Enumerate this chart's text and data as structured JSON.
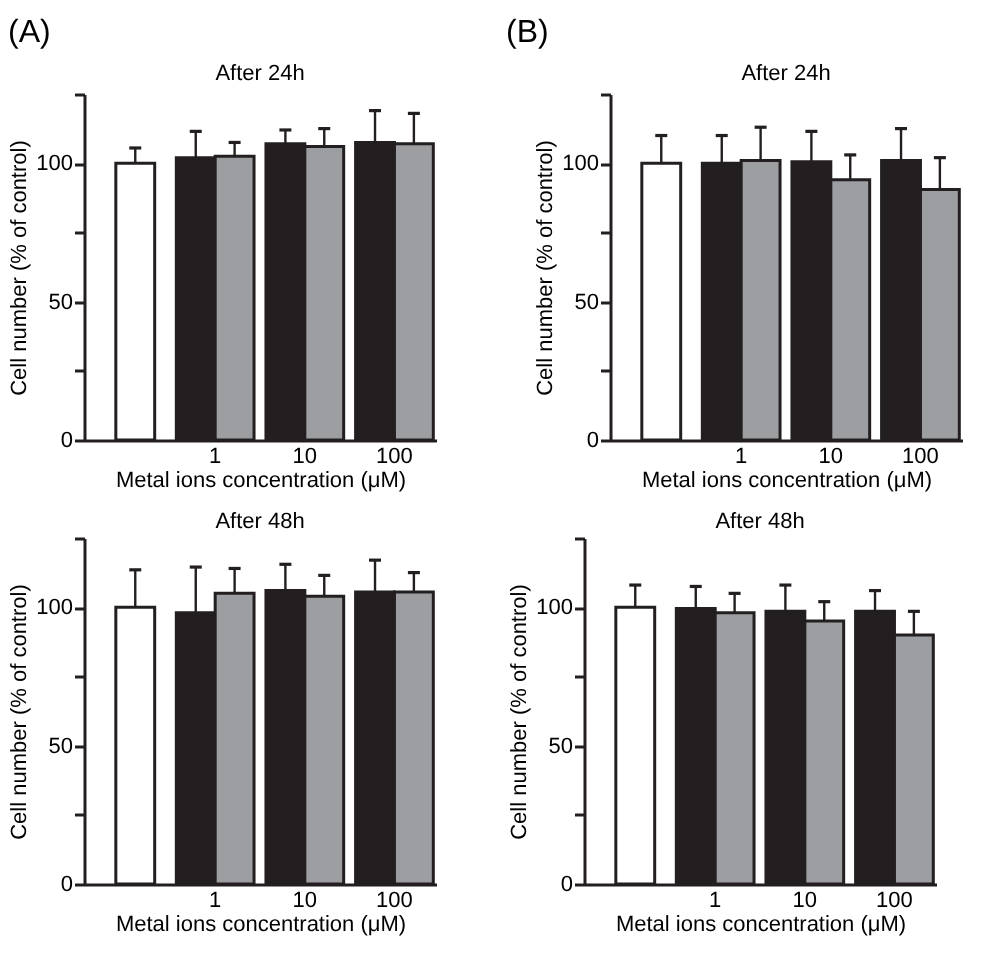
{
  "chart_data": [
    {
      "type": "bar",
      "title": "After 24h",
      "annotations": [
        "(A)"
      ],
      "xlabel": "Metal ions concentration (μM)",
      "ylabel": "Cell number (% of control)",
      "categories": [
        null,
        "1",
        "10",
        "100"
      ],
      "ylim": [
        0,
        125
      ],
      "yticks": [
        0,
        {
          "value": 25,
          "label": null
        },
        50,
        {
          "value": 75,
          "label": null
        },
        100,
        {
          "value": 125,
          "label": null
        }
      ],
      "series": [
        {
          "color": "#ffffff",
          "values": [
            100,
            null,
            null,
            null
          ],
          "errors": [
            [
              100,
              105.5
            ],
            null,
            null,
            null
          ]
        },
        {
          "color": "#231f20",
          "values": [
            null,
            102,
            107,
            107.5
          ],
          "errors": [
            null,
            [
              102,
              111.5
            ],
            [
              107,
              112
            ],
            [
              107.5,
              119
            ]
          ]
        },
        {
          "color": "#9d9ea2",
          "values": [
            null,
            102.5,
            106,
            107
          ],
          "errors": [
            null,
            [
              102.5,
              107.5
            ],
            [
              106,
              112.5
            ],
            [
              107,
              118
            ]
          ]
        }
      ]
    },
    {
      "type": "bar",
      "title": "After 24h",
      "annotations": [
        "(B)"
      ],
      "xlabel": "Metal ions concentration (μM)",
      "ylabel": "Cell number (% of control)",
      "categories": [
        null,
        "1",
        "10",
        "100"
      ],
      "ylim": [
        0,
        125
      ],
      "yticks": [
        0,
        {
          "value": 25,
          "label": null
        },
        50,
        {
          "value": 75,
          "label": null
        },
        100,
        {
          "value": 125,
          "label": null
        }
      ],
      "series": [
        {
          "color": "#ffffff",
          "values": [
            100,
            null,
            null,
            null
          ],
          "errors": [
            [
              100,
              110
            ],
            null,
            null,
            null
          ]
        },
        {
          "color": "#231f20",
          "values": [
            null,
            100,
            100.5,
            101
          ],
          "errors": [
            null,
            [
              100,
              110
            ],
            [
              100.5,
              111.5
            ],
            [
              101,
              112.5
            ]
          ]
        },
        {
          "color": "#9d9ea2",
          "values": [
            null,
            101,
            94,
            90.5
          ],
          "errors": [
            null,
            [
              101,
              113
            ],
            [
              94,
              103
            ],
            [
              90.5,
              102
            ]
          ]
        }
      ]
    },
    {
      "type": "bar",
      "title": "After 48h",
      "xlabel": "Metal ions concentration (μM)",
      "ylabel": "Cell number (% of control)",
      "categories": [
        null,
        "1",
        "10",
        "100"
      ],
      "ylim": [
        0,
        125
      ],
      "yticks": [
        0,
        {
          "value": 25,
          "label": null
        },
        50,
        {
          "value": 75,
          "label": null
        },
        100,
        {
          "value": 125,
          "label": null
        }
      ],
      "series": [
        {
          "color": "#ffffff",
          "values": [
            100,
            null,
            null,
            null
          ],
          "errors": [
            [
              100,
              113.5
            ],
            null,
            null,
            null
          ]
        },
        {
          "color": "#231f20",
          "values": [
            null,
            98,
            106,
            105.5
          ],
          "errors": [
            null,
            [
              98,
              114.5
            ],
            [
              106,
              115.5
            ],
            [
              105.5,
              117
            ]
          ]
        },
        {
          "color": "#9d9ea2",
          "values": [
            null,
            105,
            104,
            105.5
          ],
          "errors": [
            null,
            [
              105,
              114
            ],
            [
              104,
              111.5
            ],
            [
              105.5,
              112.5
            ]
          ]
        }
      ]
    },
    {
      "type": "bar",
      "title": "After 48h",
      "xlabel": "Metal ions concentration (μM)",
      "ylabel": "Cell number (% of control)",
      "categories": [
        null,
        "1",
        "10",
        "100"
      ],
      "ylim": [
        0,
        125
      ],
      "yticks": [
        0,
        {
          "value": 25,
          "label": null
        },
        50,
        {
          "value": 75,
          "label": null
        },
        100,
        {
          "value": 125,
          "label": null
        }
      ],
      "series": [
        {
          "color": "#ffffff",
          "values": [
            100,
            null,
            null,
            null
          ],
          "errors": [
            [
              100,
              108
            ],
            null,
            null,
            null
          ]
        },
        {
          "color": "#231f20",
          "values": [
            null,
            99.5,
            98.5,
            98.5
          ],
          "errors": [
            null,
            [
              99.5,
              107.5
            ],
            [
              98.5,
              108
            ],
            [
              98.5,
              106
            ]
          ]
        },
        {
          "color": "#9d9ea2",
          "values": [
            null,
            98,
            95,
            90
          ],
          "errors": [
            null,
            [
              98,
              105
            ],
            [
              95,
              102
            ],
            [
              90,
              98.5
            ]
          ]
        }
      ]
    }
  ]
}
